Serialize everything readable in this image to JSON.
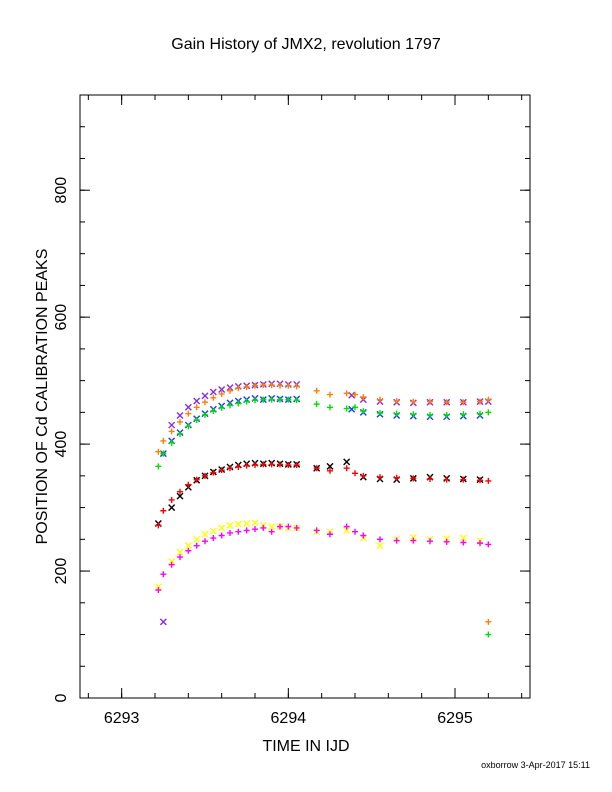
{
  "chart_data": {
    "type": "scatter",
    "title": "Gain History of JMX2, revolution 1797",
    "xlabel": "TIME IN IJD",
    "ylabel": "POSITION OF Cd CALIBRATION PEAKS",
    "xlim": [
      6292.75,
      6295.45
    ],
    "ylim": [
      0,
      950
    ],
    "xticks": [
      6293,
      6294,
      6295
    ],
    "yticks": [
      0,
      200,
      400,
      600,
      800
    ],
    "grid": false,
    "footer": "oxborrow  3-Apr-2017 15:11",
    "series": [
      {
        "color": "#8a2be2",
        "marker": "x",
        "x": [
          6293.25,
          6293.3,
          6293.35,
          6293.4,
          6293.45,
          6293.5,
          6293.55,
          6293.6,
          6293.65,
          6293.7,
          6293.75,
          6293.8,
          6293.85,
          6293.9,
          6293.95,
          6294.0,
          6294.05,
          6294.38,
          6294.45,
          6294.55,
          6294.65,
          6294.75,
          6294.85,
          6294.95,
          6295.05,
          6295.15,
          6295.2
        ],
        "y": [
          120,
          430,
          445,
          458,
          468,
          476,
          482,
          486,
          489,
          491,
          492,
          493,
          494,
          495,
          495,
          494,
          494,
          477,
          470,
          467,
          466,
          465,
          466,
          466,
          466,
          467,
          467
        ]
      },
      {
        "color": "#1a3cf0",
        "marker": "x",
        "x": [
          6293.25,
          6293.3,
          6293.35,
          6293.4,
          6293.45,
          6293.5,
          6293.55,
          6293.6,
          6293.65,
          6293.7,
          6293.75,
          6293.8,
          6293.85,
          6293.9,
          6293.95,
          6294.0,
          6294.05,
          6294.38,
          6294.45,
          6294.55,
          6294.65,
          6294.75,
          6294.85,
          6294.95,
          6295.05,
          6295.15
        ],
        "y": [
          385,
          405,
          418,
          430,
          440,
          448,
          455,
          460,
          465,
          468,
          470,
          472,
          470,
          472,
          471,
          470,
          471,
          455,
          450,
          447,
          445,
          444,
          443,
          443,
          444,
          445
        ]
      },
      {
        "color": "#00e000",
        "marker": "+",
        "x": [
          6293.22,
          6293.25,
          6293.3,
          6293.35,
          6293.4,
          6293.45,
          6293.5,
          6293.55,
          6293.6,
          6293.65,
          6293.7,
          6293.75,
          6293.8,
          6293.85,
          6293.9,
          6293.95,
          6294.0,
          6294.05,
          6294.17,
          6294.25,
          6294.35,
          6294.4,
          6294.45,
          6294.55,
          6294.65,
          6294.75,
          6294.85,
          6294.95,
          6295.05,
          6295.15,
          6295.2,
          6295.2
        ],
        "y": [
          365,
          385,
          402,
          416,
          428,
          438,
          446,
          452,
          457,
          461,
          464,
          467,
          469,
          470,
          470,
          470,
          470,
          469,
          463,
          458,
          456,
          458,
          452,
          449,
          448,
          447,
          446,
          446,
          447,
          448,
          450,
          100
        ]
      },
      {
        "color": "#ff7f00",
        "marker": "+",
        "x": [
          6293.22,
          6293.25,
          6293.3,
          6293.35,
          6293.4,
          6293.45,
          6293.5,
          6293.55,
          6293.6,
          6293.65,
          6293.7,
          6293.75,
          6293.8,
          6293.85,
          6293.9,
          6293.95,
          6294.0,
          6294.05,
          6294.17,
          6294.25,
          6294.35,
          6294.4,
          6294.45,
          6294.55,
          6294.65,
          6294.75,
          6294.85,
          6294.95,
          6295.05,
          6295.15,
          6295.2,
          6295.2
        ],
        "y": [
          388,
          405,
          420,
          435,
          448,
          458,
          466,
          473,
          479,
          484,
          488,
          490,
          492,
          493,
          493,
          492,
          492,
          491,
          484,
          478,
          480,
          478,
          474,
          470,
          468,
          467,
          467,
          466,
          466,
          467,
          470,
          120
        ]
      },
      {
        "color": "#000000",
        "marker": "x",
        "x": [
          6293.22,
          6293.3,
          6293.35,
          6293.4,
          6293.45,
          6293.5,
          6293.55,
          6293.6,
          6293.65,
          6293.7,
          6293.75,
          6293.8,
          6293.85,
          6293.9,
          6293.95,
          6294.0,
          6294.05,
          6294.17,
          6294.25,
          6294.35,
          6294.45,
          6294.55,
          6294.65,
          6294.75,
          6294.85,
          6294.95,
          6295.05,
          6295.15
        ],
        "y": [
          275,
          300,
          318,
          332,
          343,
          350,
          356,
          360,
          364,
          367,
          369,
          370,
          369,
          370,
          369,
          368,
          368,
          362,
          365,
          372,
          348,
          345,
          344,
          346,
          348,
          346,
          345,
          344
        ]
      },
      {
        "color": "#ff0000",
        "marker": "+",
        "x": [
          6293.22,
          6293.25,
          6293.3,
          6293.35,
          6293.4,
          6293.45,
          6293.5,
          6293.55,
          6293.6,
          6293.65,
          6293.7,
          6293.75,
          6293.8,
          6293.85,
          6293.9,
          6293.95,
          6294.0,
          6294.05,
          6294.17,
          6294.25,
          6294.35,
          6294.4,
          6294.45,
          6294.55,
          6294.65,
          6294.75,
          6294.85,
          6294.95,
          6295.05,
          6295.15,
          6295.2
        ],
        "y": [
          272,
          295,
          312,
          325,
          336,
          344,
          350,
          355,
          359,
          362,
          364,
          366,
          367,
          368,
          368,
          368,
          367,
          367,
          362,
          358,
          362,
          354,
          350,
          348,
          347,
          346,
          345,
          344,
          344,
          343,
          342
        ]
      },
      {
        "color": "#ffff00",
        "marker": "x",
        "x": [
          6293.22,
          6293.3,
          6293.35,
          6293.4,
          6293.45,
          6293.5,
          6293.55,
          6293.6,
          6293.65,
          6293.7,
          6293.75,
          6293.8,
          6293.85,
          6293.9,
          6293.95,
          6294.0,
          6294.05,
          6294.17,
          6294.25,
          6294.35,
          6294.45,
          6294.55,
          6294.65,
          6294.75,
          6294.85,
          6294.95,
          6295.05,
          6295.15
        ],
        "y": [
          175,
          215,
          230,
          240,
          250,
          258,
          263,
          268,
          272,
          274,
          275,
          276,
          272,
          270,
          270,
          268,
          268,
          262,
          262,
          264,
          252,
          240,
          250,
          253,
          250,
          251,
          252,
          248
        ]
      },
      {
        "color": "#ff00ff",
        "marker": "+",
        "x": [
          6293.22,
          6293.25,
          6293.3,
          6293.35,
          6293.4,
          6293.45,
          6293.5,
          6293.55,
          6293.6,
          6293.65,
          6293.7,
          6293.75,
          6293.8,
          6293.85,
          6293.9,
          6293.95,
          6294.0,
          6294.05,
          6294.17,
          6294.25,
          6294.35,
          6294.4,
          6294.45,
          6294.55,
          6294.65,
          6294.75,
          6294.85,
          6294.95,
          6295.05,
          6295.15,
          6295.2
        ],
        "y": [
          170,
          195,
          210,
          222,
          232,
          240,
          247,
          252,
          256,
          260,
          262,
          264,
          266,
          268,
          262,
          270,
          270,
          268,
          264,
          258,
          270,
          262,
          256,
          250,
          248,
          248,
          247,
          246,
          245,
          244,
          242
        ]
      }
    ]
  }
}
